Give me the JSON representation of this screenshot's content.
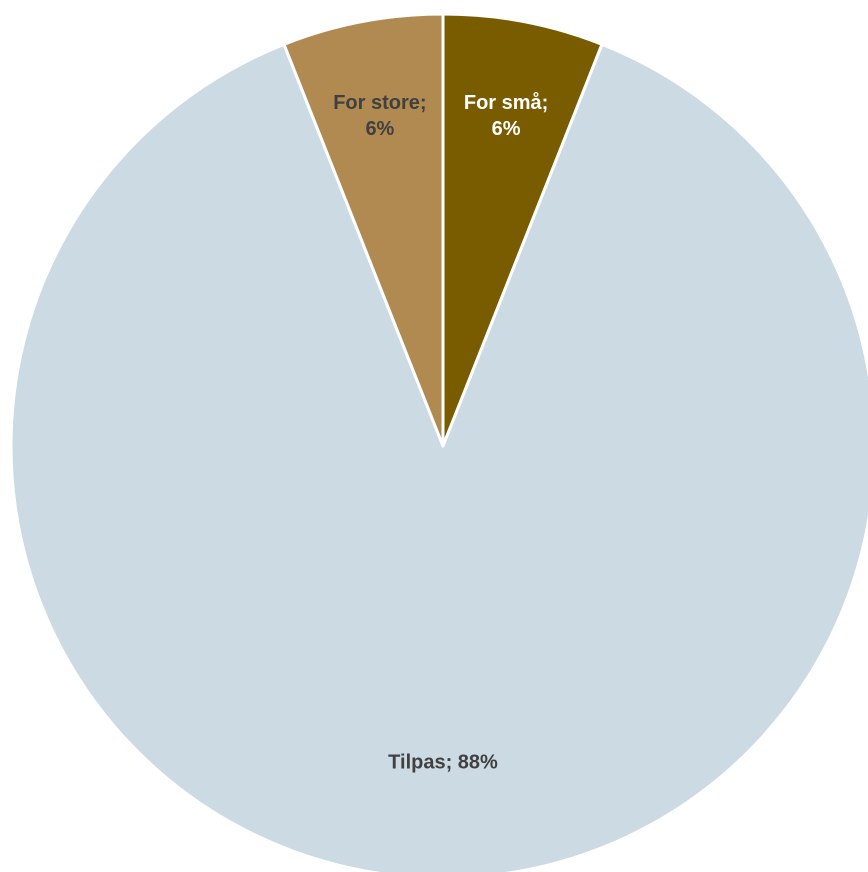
{
  "chart_data": {
    "type": "pie",
    "start_angle_deg": 0,
    "direction": "clockwise",
    "slices": [
      {
        "label": "For små",
        "value": 6,
        "color": "#7A5C00",
        "label_color": "#FFFFFF",
        "label_lines": [
          "For små;",
          "6%"
        ]
      },
      {
        "label": "Tilpas",
        "value": 88,
        "color": "#CCDAE4",
        "label_color": "#404040",
        "label_lines": [
          "Tilpas; 88%"
        ]
      },
      {
        "label": "For store",
        "value": 6,
        "color": "#B08A50",
        "label_color": "#404040",
        "label_lines": [
          "For store;",
          "6%"
        ]
      }
    ],
    "title": "",
    "legend": "none"
  }
}
